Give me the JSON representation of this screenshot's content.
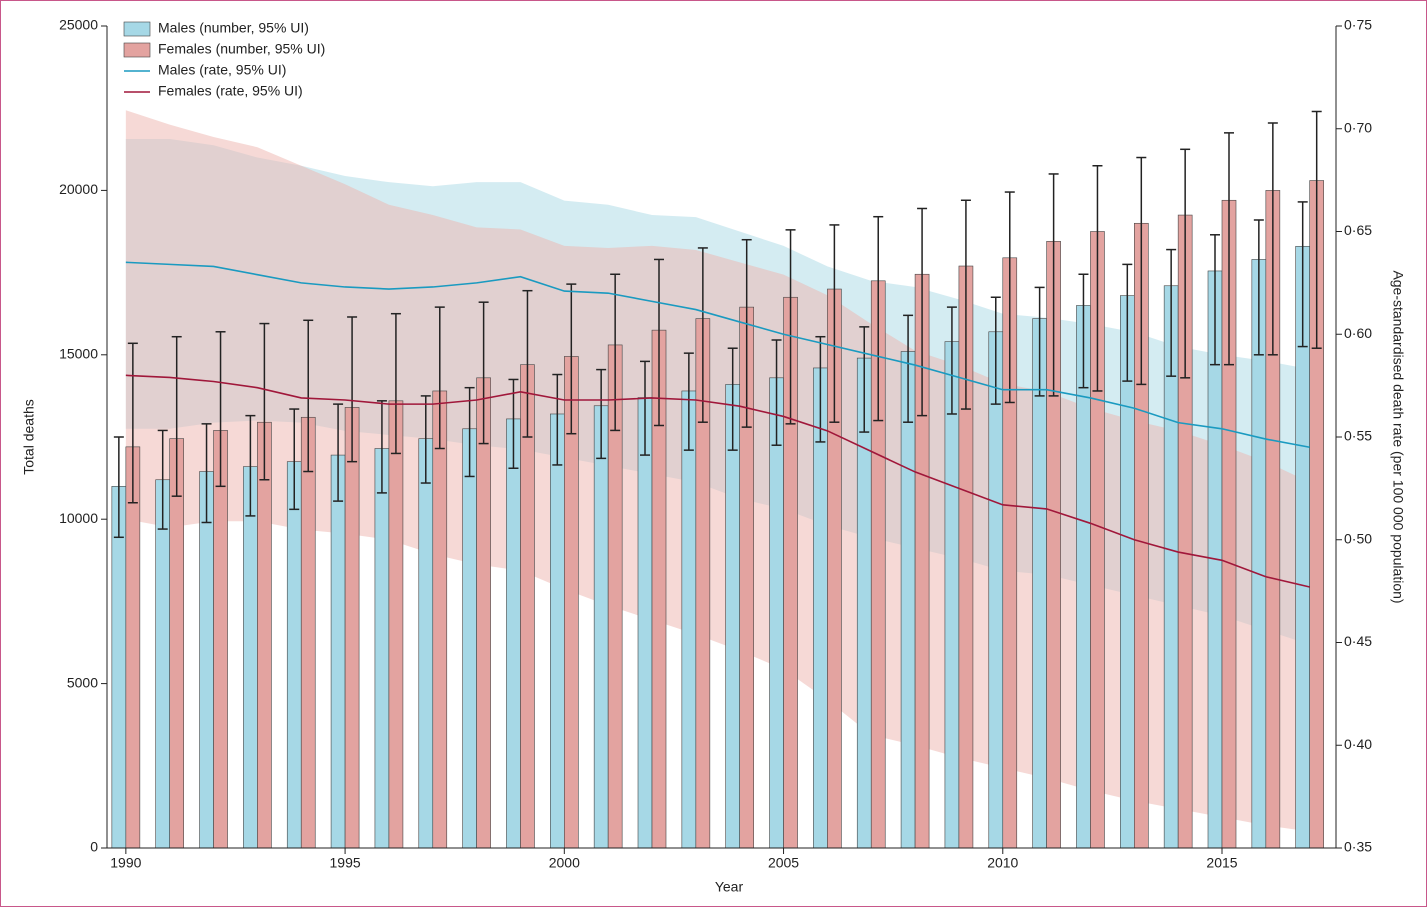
{
  "chart_data": {
    "type": "bar",
    "x_label": "Year",
    "y_label": "Total deaths",
    "y2_label": "Age-standardised death rate (per 100 000 population)",
    "x": [
      1990,
      1991,
      1992,
      1993,
      1994,
      1995,
      1996,
      1997,
      1998,
      1999,
      2000,
      2001,
      2002,
      2003,
      2004,
      2005,
      2006,
      2007,
      2008,
      2009,
      2010,
      2011,
      2012,
      2013,
      2014,
      2015,
      2016,
      2017
    ],
    "xlim": [
      1989.57,
      2017.6
    ],
    "xticks": [
      1990,
      1995,
      2000,
      2005,
      2010,
      2015
    ],
    "ylim": [
      0,
      25000
    ],
    "yticks": [
      0,
      5000,
      10000,
      15000,
      20000,
      25000
    ],
    "y2lim": [
      0.35,
      0.75
    ],
    "y2ticks": [
      {
        "value": 0.35,
        "label": "0·35"
      },
      {
        "value": 0.4,
        "label": "0·40"
      },
      {
        "value": 0.45,
        "label": "0·45"
      },
      {
        "value": 0.5,
        "label": "0·50"
      },
      {
        "value": 0.55,
        "label": "0·55"
      },
      {
        "value": 0.6,
        "label": "0·60"
      },
      {
        "value": 0.65,
        "label": "0·65"
      },
      {
        "value": 0.7,
        "label": "0·70"
      },
      {
        "value": 0.75,
        "label": "0·75"
      }
    ],
    "legend": "upper left",
    "series": [
      {
        "name": "Males (number, 95% UI)",
        "type": "bar",
        "color": "#a6d8e6",
        "values": [
          11000,
          11200,
          11450,
          11600,
          11750,
          11950,
          12150,
          12450,
          12750,
          13050,
          13200,
          13450,
          13700,
          13900,
          14100,
          14300,
          14600,
          14900,
          15100,
          15400,
          15700,
          16100,
          16500,
          16800,
          17100,
          17550,
          17900,
          18300
        ],
        "lower": [
          9450,
          9700,
          9900,
          10100,
          10300,
          10550,
          10800,
          11100,
          11300,
          11550,
          11650,
          11850,
          11950,
          12100,
          12100,
          12250,
          12350,
          12650,
          12950,
          13200,
          13500,
          13750,
          14000,
          14200,
          14350,
          14700,
          15000,
          15250
        ],
        "upper": [
          12500,
          12700,
          12900,
          13150,
          13350,
          13500,
          13600,
          13750,
          14000,
          14250,
          14400,
          14550,
          14800,
          15050,
          15200,
          15450,
          15550,
          15850,
          16200,
          16450,
          16750,
          17050,
          17450,
          17750,
          18200,
          18650,
          19100,
          19650
        ]
      },
      {
        "name": "Females (number, 95% UI)",
        "type": "bar",
        "color": "#e3a3a0",
        "values": [
          12200,
          12450,
          12700,
          12950,
          13100,
          13400,
          13600,
          13900,
          14300,
          14700,
          14950,
          15300,
          15750,
          16100,
          16450,
          16750,
          17000,
          17250,
          17450,
          17700,
          17950,
          18450,
          18750,
          19000,
          19250,
          19700,
          20000,
          20300
        ],
        "lower": [
          10500,
          10700,
          11000,
          11200,
          11450,
          11750,
          12000,
          12150,
          12300,
          12500,
          12600,
          12700,
          12850,
          12950,
          12800,
          12900,
          12950,
          13000,
          13150,
          13350,
          13550,
          13750,
          13900,
          14100,
          14300,
          14700,
          15000,
          15200
        ],
        "upper": [
          15350,
          15550,
          15700,
          15950,
          16050,
          16150,
          16250,
          16450,
          16600,
          16950,
          17150,
          17450,
          17900,
          18250,
          18500,
          18800,
          18950,
          19200,
          19450,
          19700,
          19950,
          20500,
          20750,
          21000,
          21250,
          21750,
          22050,
          22400
        ]
      },
      {
        "name": "Males (rate, 95% UI)",
        "type": "line",
        "axis": "y2",
        "color": "#1a9ac0",
        "band_color": "#a9d9e6",
        "values": [
          0.635,
          0.634,
          0.633,
          0.629,
          0.625,
          0.623,
          0.622,
          0.623,
          0.625,
          0.628,
          0.621,
          0.62,
          0.616,
          0.612,
          0.606,
          0.6,
          0.595,
          0.59,
          0.585,
          0.579,
          0.573,
          0.573,
          0.569,
          0.564,
          0.557,
          0.554,
          0.549,
          0.545
        ],
        "lower": [
          0.554,
          0.554,
          0.557,
          0.558,
          0.557,
          0.553,
          0.551,
          0.549,
          0.546,
          0.544,
          0.54,
          0.536,
          0.532,
          0.528,
          0.52,
          0.515,
          0.507,
          0.501,
          0.496,
          0.491,
          0.485,
          0.483,
          0.478,
          0.473,
          0.468,
          0.463,
          0.456,
          0.449
        ],
        "upper": [
          0.695,
          0.695,
          0.692,
          0.686,
          0.682,
          0.677,
          0.674,
          0.672,
          0.674,
          0.674,
          0.665,
          0.663,
          0.658,
          0.657,
          0.65,
          0.643,
          0.633,
          0.626,
          0.623,
          0.617,
          0.61,
          0.608,
          0.605,
          0.601,
          0.594,
          0.59,
          0.587,
          0.583
        ]
      },
      {
        "name": "Females (rate, 95% UI)",
        "type": "line",
        "axis": "y2",
        "color": "#a0173a",
        "band_color": "#eeb3ad",
        "values": [
          0.58,
          0.579,
          0.577,
          0.574,
          0.569,
          0.568,
          0.566,
          0.566,
          0.568,
          0.572,
          0.568,
          0.568,
          0.569,
          0.568,
          0.565,
          0.56,
          0.553,
          0.543,
          0.533,
          0.525,
          0.517,
          0.515,
          0.508,
          0.5,
          0.494,
          0.49,
          0.482,
          0.477
        ],
        "lower": [
          0.51,
          0.506,
          0.509,
          0.509,
          0.505,
          0.503,
          0.5,
          0.493,
          0.488,
          0.485,
          0.476,
          0.468,
          0.461,
          0.454,
          0.446,
          0.437,
          0.422,
          0.405,
          0.4,
          0.394,
          0.389,
          0.384,
          0.378,
          0.373,
          0.369,
          0.365,
          0.361,
          0.358
        ],
        "upper": [
          0.709,
          0.702,
          0.696,
          0.691,
          0.682,
          0.673,
          0.663,
          0.658,
          0.652,
          0.651,
          0.643,
          0.642,
          0.643,
          0.641,
          0.635,
          0.629,
          0.619,
          0.605,
          0.592,
          0.585,
          0.576,
          0.572,
          0.564,
          0.558,
          0.553,
          0.546,
          0.538,
          0.528
        ]
      }
    ]
  }
}
